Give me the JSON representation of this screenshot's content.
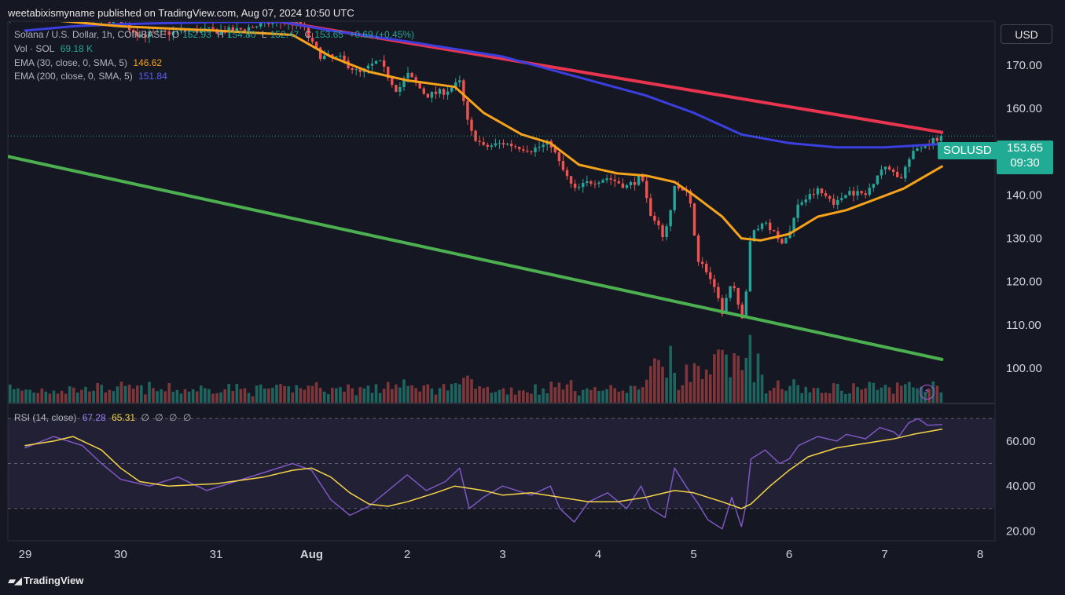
{
  "header": {
    "published_line": "weetabixismyname published on TradingView.com, Aug 07, 2024 10:50 UTC",
    "currency_button": "USD"
  },
  "legend": {
    "main_title": "Solana / U.S. Dollar, 1h, COINBASE",
    "ohlc": {
      "o_label": "O",
      "o": "152.93",
      "h_label": "H",
      "h": "154.80",
      "l_label": "L",
      "l": "152.47",
      "c_label": "C",
      "c": "153.65",
      "change": "+0.69 (+0.45%)"
    },
    "vol_label": "Vol · SOL",
    "vol_value": "69.18 K",
    "ema30_label": "EMA (30, close, 0, SMA, 5)",
    "ema30_value": "146.62",
    "ema200_label": "EMA (200, close, 0, SMA, 5)",
    "ema200_value": "151.84",
    "rsi_label": "RSI (14, close)",
    "rsi_value": "67.28",
    "rsi_ma_value": "65.31",
    "rsi_extra": [
      "∅",
      "∅",
      "∅",
      "∅"
    ]
  },
  "price_tag": {
    "symbol": "SOLUSD",
    "price": "153.65",
    "countdown": "09:30"
  },
  "footer": {
    "brand": "TradingView"
  },
  "colors": {
    "up": "#26a69a",
    "down": "#ef5350",
    "ema30": "#f7a21b",
    "ema200": "#3b3fe0",
    "trend_upper": "#e8344e",
    "trend_lower": "#4caf50",
    "rsi": "#7e57c2",
    "rsi_ma": "#f5d547",
    "background": "#151822"
  },
  "chart_data": {
    "type": "candlestick",
    "interval": "1h",
    "price_ylim": [
      92,
      180
    ],
    "price_ticks": [
      "170.00",
      "160.00",
      "150.00",
      "140.00",
      "130.00",
      "120.00",
      "110.00",
      "100.00"
    ],
    "rsi_ylim": [
      16,
      76
    ],
    "rsi_ticks": [
      "60.00",
      "40.00",
      "20.00"
    ],
    "x_labels": [
      "29",
      "30",
      "31",
      "Aug",
      "2",
      "3",
      "4",
      "5",
      "6",
      "7",
      "8"
    ],
    "x_label_positions": [
      0,
      1,
      2,
      3,
      4,
      5,
      6,
      7,
      8,
      9,
      10
    ],
    "x_range_days": [
      -0.2,
      10.25
    ],
    "last_price": 153.65,
    "price_path": [
      [
        0.0,
        181.0
      ],
      [
        0.5,
        182.0
      ],
      [
        1.0,
        180.0
      ],
      [
        1.2,
        177.0
      ],
      [
        1.8,
        178.0
      ],
      [
        2.2,
        178.0
      ],
      [
        2.6,
        180.0
      ],
      [
        2.9,
        179.5
      ],
      [
        3.0,
        175.0
      ],
      [
        3.1,
        172.0
      ],
      [
        3.3,
        171.5
      ],
      [
        3.5,
        168.0
      ],
      [
        3.7,
        171.0
      ],
      [
        3.9,
        164.0
      ],
      [
        4.0,
        168.0
      ],
      [
        4.2,
        163.0
      ],
      [
        4.4,
        164.0
      ],
      [
        4.55,
        166.0
      ],
      [
        4.65,
        155.0
      ],
      [
        4.8,
        151.0
      ],
      [
        5.0,
        152.0
      ],
      [
        5.3,
        150.5
      ],
      [
        5.5,
        152.0
      ],
      [
        5.6,
        147.0
      ],
      [
        5.75,
        141.0
      ],
      [
        5.9,
        143.0
      ],
      [
        6.1,
        144.0
      ],
      [
        6.3,
        142.0
      ],
      [
        6.45,
        144.0
      ],
      [
        6.55,
        135.0
      ],
      [
        6.7,
        130.0
      ],
      [
        6.8,
        142.0
      ],
      [
        6.95,
        140.0
      ],
      [
        7.05,
        125.0
      ],
      [
        7.15,
        122.0
      ],
      [
        7.3,
        113.0
      ],
      [
        7.4,
        120.0
      ],
      [
        7.5,
        111.0
      ],
      [
        7.55,
        118.0
      ],
      [
        7.6,
        131.0
      ],
      [
        7.75,
        134.0
      ],
      [
        7.9,
        129.0
      ],
      [
        8.0,
        131.0
      ],
      [
        8.1,
        138.0
      ],
      [
        8.3,
        141.0
      ],
      [
        8.5,
        138.0
      ],
      [
        8.6,
        141.0
      ],
      [
        8.8,
        140.0
      ],
      [
        8.95,
        146.0
      ],
      [
        9.1,
        146.0
      ],
      [
        9.15,
        143.0
      ],
      [
        9.25,
        148.0
      ],
      [
        9.35,
        151.0
      ],
      [
        9.45,
        152.0
      ],
      [
        9.6,
        153.65
      ]
    ],
    "ema30_path": [
      [
        0.0,
        181.0
      ],
      [
        1.0,
        179.0
      ],
      [
        2.0,
        178.0
      ],
      [
        2.8,
        177.0
      ],
      [
        3.2,
        172.0
      ],
      [
        3.6,
        168.5
      ],
      [
        4.0,
        166.5
      ],
      [
        4.5,
        165.0
      ],
      [
        4.8,
        159.0
      ],
      [
        5.2,
        154.0
      ],
      [
        5.5,
        152.0
      ],
      [
        5.8,
        147.0
      ],
      [
        6.2,
        145.0
      ],
      [
        6.5,
        144.5
      ],
      [
        6.8,
        143.0
      ],
      [
        7.0,
        140.0
      ],
      [
        7.3,
        135.0
      ],
      [
        7.5,
        130.0
      ],
      [
        7.7,
        129.5
      ],
      [
        8.0,
        131.0
      ],
      [
        8.3,
        135.0
      ],
      [
        8.6,
        136.5
      ],
      [
        8.9,
        139.0
      ],
      [
        9.2,
        141.5
      ],
      [
        9.6,
        146.6
      ]
    ],
    "ema200_path": [
      [
        0.0,
        178.0
      ],
      [
        0.5,
        179.0
      ],
      [
        1.0,
        179.5
      ],
      [
        2.0,
        180.0
      ],
      [
        2.7,
        180.0
      ],
      [
        3.2,
        178.0
      ],
      [
        4.0,
        175.5
      ],
      [
        5.0,
        172.0
      ],
      [
        6.0,
        166.0
      ],
      [
        6.5,
        163.0
      ],
      [
        7.0,
        159.0
      ],
      [
        7.5,
        154.0
      ],
      [
        8.0,
        152.0
      ],
      [
        8.5,
        151.0
      ],
      [
        9.0,
        151.0
      ],
      [
        9.6,
        151.8
      ]
    ],
    "trendlines": [
      {
        "name": "upper",
        "from": [
          2.7,
          180.0
        ],
        "to": [
          9.6,
          154.5
        ]
      },
      {
        "name": "lower",
        "from": [
          -0.2,
          149.0
        ],
        "to": [
          9.6,
          102.0
        ]
      }
    ],
    "rsi_path": [
      [
        0.0,
        57
      ],
      [
        0.3,
        62
      ],
      [
        0.6,
        58
      ],
      [
        0.8,
        50
      ],
      [
        1.0,
        43
      ],
      [
        1.3,
        40
      ],
      [
        1.6,
        44
      ],
      [
        1.9,
        38
      ],
      [
        2.2,
        42
      ],
      [
        2.5,
        46
      ],
      [
        2.8,
        50
      ],
      [
        3.0,
        47
      ],
      [
        3.2,
        34
      ],
      [
        3.4,
        27
      ],
      [
        3.6,
        31
      ],
      [
        3.8,
        38
      ],
      [
        4.0,
        45
      ],
      [
        4.2,
        38
      ],
      [
        4.4,
        42
      ],
      [
        4.55,
        48
      ],
      [
        4.65,
        30
      ],
      [
        4.8,
        35
      ],
      [
        5.0,
        40
      ],
      [
        5.3,
        36
      ],
      [
        5.5,
        40
      ],
      [
        5.6,
        30
      ],
      [
        5.75,
        24
      ],
      [
        5.9,
        33
      ],
      [
        6.1,
        37
      ],
      [
        6.3,
        30
      ],
      [
        6.45,
        40
      ],
      [
        6.55,
        30
      ],
      [
        6.7,
        26
      ],
      [
        6.8,
        48
      ],
      [
        6.95,
        38
      ],
      [
        7.05,
        32
      ],
      [
        7.15,
        25
      ],
      [
        7.3,
        21
      ],
      [
        7.4,
        35
      ],
      [
        7.5,
        22
      ],
      [
        7.55,
        32
      ],
      [
        7.6,
        52
      ],
      [
        7.75,
        56
      ],
      [
        7.9,
        50
      ],
      [
        8.0,
        52
      ],
      [
        8.1,
        58
      ],
      [
        8.3,
        62
      ],
      [
        8.5,
        60
      ],
      [
        8.6,
        63
      ],
      [
        8.8,
        61
      ],
      [
        8.95,
        66
      ],
      [
        9.1,
        64
      ],
      [
        9.15,
        62
      ],
      [
        9.25,
        68
      ],
      [
        9.35,
        70
      ],
      [
        9.45,
        67
      ],
      [
        9.6,
        67.3
      ]
    ],
    "rsi_ma_path": [
      [
        0.0,
        58
      ],
      [
        0.3,
        60
      ],
      [
        0.5,
        62
      ],
      [
        0.8,
        56
      ],
      [
        1.0,
        48
      ],
      [
        1.2,
        42
      ],
      [
        1.5,
        40
      ],
      [
        2.0,
        41
      ],
      [
        2.5,
        44
      ],
      [
        2.8,
        47
      ],
      [
        3.0,
        48
      ],
      [
        3.2,
        44
      ],
      [
        3.4,
        37
      ],
      [
        3.6,
        32
      ],
      [
        3.8,
        31
      ],
      [
        4.0,
        33
      ],
      [
        4.3,
        37
      ],
      [
        4.5,
        40
      ],
      [
        4.8,
        38
      ],
      [
        5.0,
        36
      ],
      [
        5.3,
        37
      ],
      [
        5.6,
        35
      ],
      [
        5.9,
        33
      ],
      [
        6.2,
        33
      ],
      [
        6.5,
        35
      ],
      [
        6.8,
        38
      ],
      [
        7.0,
        37
      ],
      [
        7.3,
        33
      ],
      [
        7.5,
        30
      ],
      [
        7.6,
        32
      ],
      [
        7.8,
        40
      ],
      [
        8.0,
        47
      ],
      [
        8.2,
        53
      ],
      [
        8.5,
        57
      ],
      [
        8.8,
        59
      ],
      [
        9.1,
        61
      ],
      [
        9.3,
        63
      ],
      [
        9.6,
        65.3
      ]
    ],
    "rsi_bands": {
      "upper": 70,
      "middle": 50,
      "lower": 30
    }
  }
}
